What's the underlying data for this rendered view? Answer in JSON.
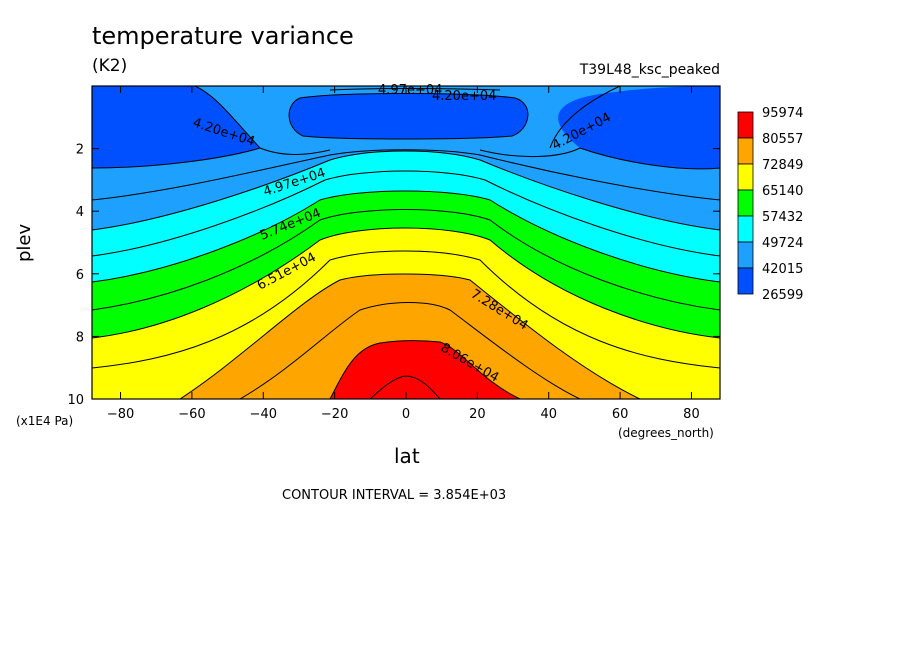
{
  "chart_data": {
    "type": "contour",
    "title": "temperature variance",
    "units": "(K2)",
    "run_label": "T39L48_ksc_peaked",
    "xlabel": "lat",
    "xlabel_units": "(degrees_north)",
    "ylabel": "plev",
    "ylabel_scale": "(x1E4 Pa)",
    "xlim": [
      -88,
      88
    ],
    "ylim": [
      0,
      10
    ],
    "y_inverted": true,
    "xticks": [
      -80,
      -60,
      -40,
      -20,
      0,
      20,
      40,
      60,
      80
    ],
    "xtick_labels": [
      "−80",
      "−60",
      "−40",
      "−20",
      "0",
      "20",
      "40",
      "60",
      "80"
    ],
    "yticks": [
      2,
      4,
      6,
      8,
      10
    ],
    "ytick_labels": [
      "2",
      "4",
      "6",
      "8",
      "10"
    ],
    "colorbar": {
      "labels": [
        "95974",
        "80557",
        "72849",
        "65140",
        "57432",
        "49724",
        "42015",
        "26599"
      ],
      "colors": [
        "#ff0000",
        "#ffa500",
        "#ffff00",
        "#00ff00",
        "#00ffff",
        "#1ea0ff",
        "#0050ff"
      ]
    },
    "contour_labels": [
      "4.97e+04",
      "4.20e+04",
      "4.20e+04",
      "4.20e+04",
      "4.97e+04",
      "5.74e+04",
      "6.51e+04",
      "7.28e+04",
      "8.06e+04"
    ],
    "contour_interval_text": "CONTOUR INTERVAL = 3.854E+03",
    "grid": false,
    "legend_position": "right"
  }
}
